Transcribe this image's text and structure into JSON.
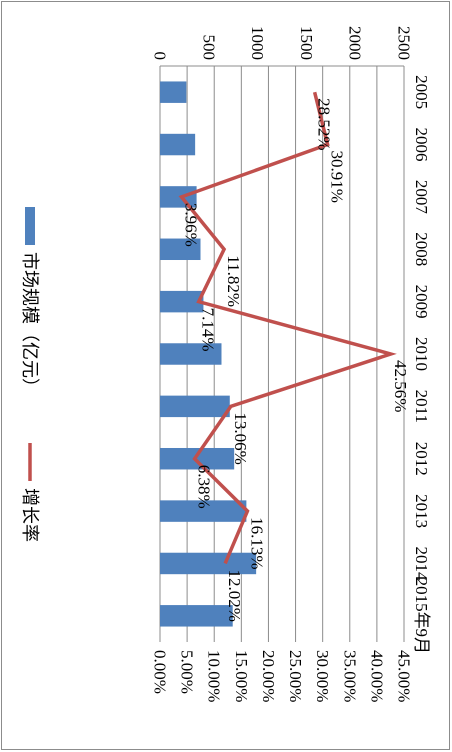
{
  "chart_data": {
    "type": "bar+line",
    "orientation": "rotated-90-clockwise",
    "categories": [
      "2005",
      "2006",
      "2007",
      "2008",
      "2009",
      "2010",
      "2011",
      "2012",
      "2013",
      "2014",
      "2015年9月"
    ],
    "series": [
      {
        "name": "市场规模（亿元）",
        "type": "bar",
        "axis": "primary",
        "color": "#4f81bd",
        "values": [
          270,
          360,
          375,
          415,
          445,
          630,
          715,
          760,
          885,
          985,
          745
        ]
      },
      {
        "name": "增长率",
        "type": "line",
        "axis": "secondary",
        "color": "#c0504d",
        "values": [
          28.52,
          30.91,
          3.96,
          11.82,
          7.14,
          42.56,
          13.06,
          6.38,
          16.13,
          12.02,
          null
        ],
        "labels": [
          "28.52%",
          "30.91%",
          "3.96%",
          "11.82%",
          "7.14%",
          "42.56%",
          "13.06%",
          "6.38%",
          "16.13%",
          "12.02%",
          ""
        ]
      }
    ],
    "primary_axis": {
      "min": 0,
      "max": 2500,
      "step": 500,
      "ticks": [
        "0",
        "500",
        "1000",
        "1500",
        "2000",
        "2500"
      ]
    },
    "secondary_axis": {
      "min": 0,
      "max": 45,
      "step": 5,
      "ticks": [
        "0.00%",
        "5.00%",
        "10.00%",
        "15.00%",
        "20.00%",
        "25.00%",
        "30.00%",
        "35.00%",
        "40.00%",
        "45.00%"
      ]
    },
    "grid": true,
    "legend_position": "left"
  }
}
